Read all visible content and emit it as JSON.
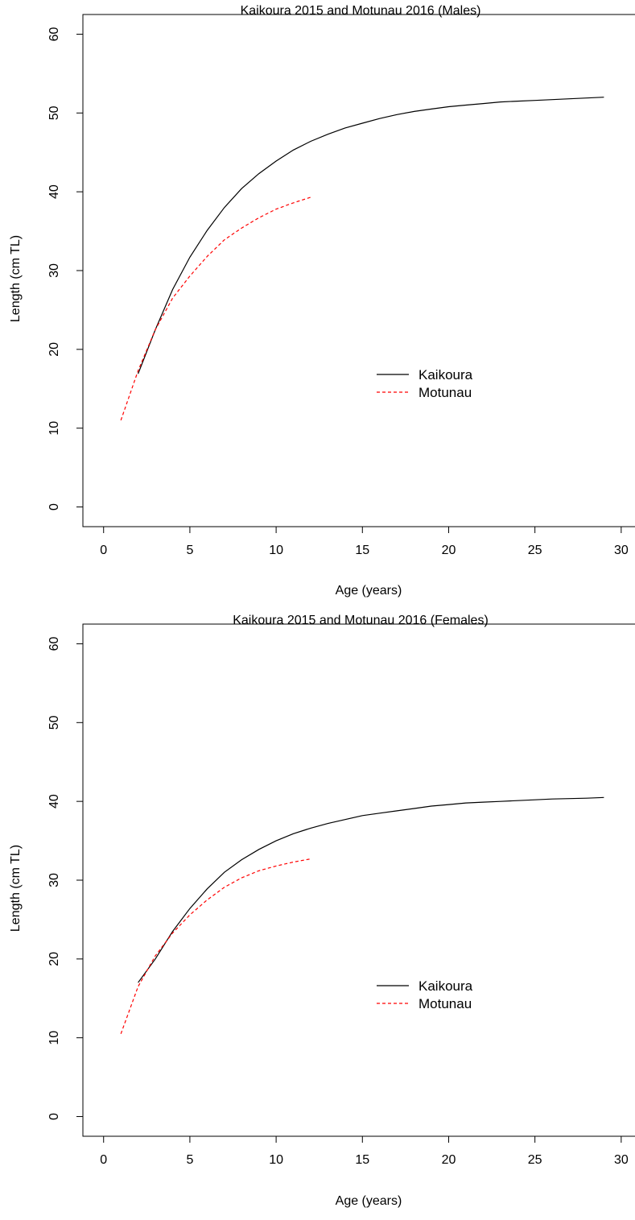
{
  "chart_data": [
    {
      "type": "line",
      "title": "Kaikoura 2015 and Motunau 2016 (Males)",
      "xlabel": "Age (years)",
      "ylabel": "Length (cm TL)",
      "xlim": [
        -1.2,
        30.8
      ],
      "ylim": [
        -2.5,
        62.5
      ],
      "xticks": [
        0,
        5,
        10,
        15,
        20,
        25,
        30
      ],
      "yticks": [
        0,
        10,
        20,
        30,
        40,
        50,
        60
      ],
      "grid": false,
      "legend_position": "center-right",
      "series": [
        {
          "name": "Kaikoura",
          "color": "#000000",
          "dash": "solid",
          "x": [
            2,
            3,
            4,
            5,
            6,
            7,
            8,
            9,
            10,
            11,
            12,
            13,
            14,
            15,
            16,
            17,
            18,
            19,
            20,
            21,
            22,
            23,
            24,
            25,
            26,
            27,
            28,
            29
          ],
          "y": [
            16.9,
            22.5,
            27.6,
            31.7,
            35.1,
            38.0,
            40.4,
            42.3,
            43.9,
            45.3,
            46.4,
            47.3,
            48.1,
            48.7,
            49.3,
            49.8,
            50.2,
            50.5,
            50.8,
            51.0,
            51.2,
            51.4,
            51.5,
            51.6,
            51.7,
            51.8,
            51.9,
            52.0
          ]
        },
        {
          "name": "Motunau",
          "color": "#ff0000",
          "dash": "dashed",
          "x": [
            1,
            2,
            3,
            4,
            5,
            6,
            7,
            8,
            9,
            10,
            11,
            12
          ],
          "y": [
            11.0,
            17.3,
            22.5,
            26.5,
            29.3,
            31.8,
            33.9,
            35.4,
            36.7,
            37.8,
            38.6,
            39.3
          ]
        }
      ]
    },
    {
      "type": "line",
      "title": "Kaikoura 2015 and Motunau 2016 (Females)",
      "xlabel": "Age (years)",
      "ylabel": "Length (cm TL)",
      "xlim": [
        -1.2,
        30.8
      ],
      "ylim": [
        -2.5,
        62.5
      ],
      "xticks": [
        0,
        5,
        10,
        15,
        20,
        25,
        30
      ],
      "yticks": [
        0,
        10,
        20,
        30,
        40,
        50,
        60
      ],
      "grid": false,
      "legend_position": "center-right",
      "series": [
        {
          "name": "Kaikoura",
          "color": "#000000",
          "dash": "solid",
          "x": [
            2,
            3,
            4,
            5,
            6,
            7,
            8,
            9,
            10,
            11,
            12,
            13,
            14,
            15,
            16,
            17,
            18,
            19,
            20,
            21,
            22,
            23,
            24,
            25,
            26,
            27,
            28,
            29
          ],
          "y": [
            17.0,
            20.0,
            23.5,
            26.4,
            28.9,
            31.0,
            32.6,
            33.9,
            35.0,
            35.9,
            36.6,
            37.2,
            37.7,
            38.2,
            38.5,
            38.8,
            39.1,
            39.4,
            39.6,
            39.8,
            39.9,
            40.0,
            40.1,
            40.2,
            40.3,
            40.35,
            40.4,
            40.5
          ]
        },
        {
          "name": "Motunau",
          "color": "#ff0000",
          "dash": "dashed",
          "x": [
            1,
            2,
            3,
            4,
            5,
            6,
            7,
            8,
            9,
            10,
            11,
            12
          ],
          "y": [
            10.5,
            16.5,
            20.4,
            23.3,
            25.6,
            27.5,
            29.1,
            30.3,
            31.2,
            31.8,
            32.3,
            32.7
          ]
        }
      ]
    }
  ]
}
